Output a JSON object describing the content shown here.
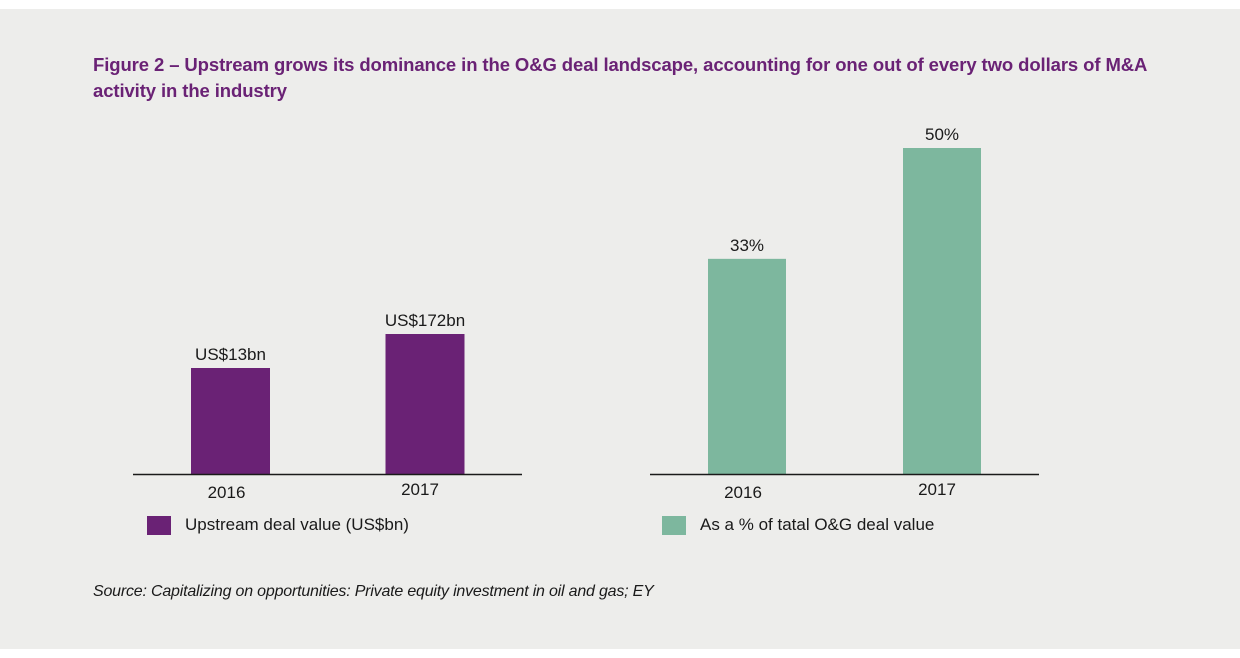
{
  "title": "Figure 2 – Upstream grows its dominance in the O&G deal landscape, accounting for one out of every two dollars of M&A activity in the industry",
  "source": "Source:  Capitalizing on opportunities: Private equity investment in oil and gas; EY",
  "colors": {
    "title": "#6a2275",
    "upstream": "#6a2275",
    "share": "#7db79e",
    "background": "#ededeb",
    "axis": "#1a1a1a"
  },
  "chart_data": [
    {
      "type": "bar",
      "title": "",
      "categories": [
        "2016",
        "2017"
      ],
      "values": [
        13,
        172
      ],
      "value_labels": [
        "US$13bn",
        "US$172bn"
      ],
      "series_name": "Upstream deal value (US$bn)",
      "unit": "US$bn",
      "legend": "bottom-left",
      "grid": false,
      "xlabel": "",
      "ylabel": ""
    },
    {
      "type": "bar",
      "title": "",
      "categories": [
        "2016",
        "2017"
      ],
      "values": [
        33,
        50
      ],
      "value_labels": [
        "33%",
        "50%"
      ],
      "series_name": "As a % of tatal O&G deal value",
      "unit": "%",
      "legend": "bottom-left",
      "grid": false,
      "xlabel": "",
      "ylabel": "",
      "ylim": [
        0,
        50
      ]
    }
  ]
}
